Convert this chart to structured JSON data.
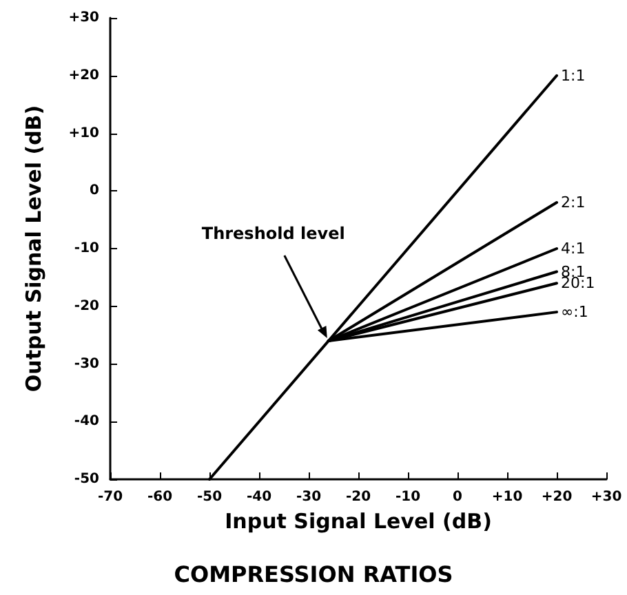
{
  "chart_data": {
    "type": "line",
    "title": "COMPRESSION RATIOS",
    "xlabel": "Input Signal Level (dB)",
    "ylabel": "Output Signal Level (dB)",
    "series": [
      {
        "name": "1:1",
        "color": "#000000",
        "x": [
          -50,
          20
        ],
        "values": [
          -50,
          20
        ]
      },
      {
        "name": "2:1",
        "color": "#000000",
        "x": [
          -26,
          20
        ],
        "values": [
          -26,
          -2
        ]
      },
      {
        "name": "4:1",
        "color": "#000000",
        "x": [
          -26,
          20
        ],
        "values": [
          -26,
          -10
        ]
      },
      {
        "name": "8:1",
        "color": "#000000",
        "x": [
          -26,
          20
        ],
        "values": [
          -26,
          -14
        ]
      },
      {
        "name": "20:1",
        "color": "#000000",
        "x": [
          -26,
          20
        ],
        "values": [
          -26,
          -16
        ]
      },
      {
        "name": "∞:1",
        "color": "#000000",
        "x": [
          -26,
          20
        ],
        "values": [
          -26,
          -21
        ]
      }
    ],
    "annotations": [
      {
        "text": "Threshold level",
        "x": -26,
        "y": -26
      }
    ],
    "xlim": [
      -70,
      30
    ],
    "ylim": [
      -50,
      30
    ],
    "xticks": [
      -70,
      -60,
      -50,
      -40,
      -30,
      -20,
      -10,
      0,
      {
        "value": 10,
        "label": "+10"
      },
      {
        "value": 20,
        "label": "+20"
      },
      {
        "value": 30,
        "label": "+30"
      }
    ],
    "yticks": [
      -50,
      -40,
      -30,
      -20,
      -10,
      0,
      {
        "value": 10,
        "label": "+10"
      },
      {
        "value": 20,
        "label": "+20"
      },
      {
        "value": 30,
        "label": "+30"
      }
    ],
    "grid": false,
    "legend": false,
    "marker": "none",
    "line_style": "solid"
  }
}
